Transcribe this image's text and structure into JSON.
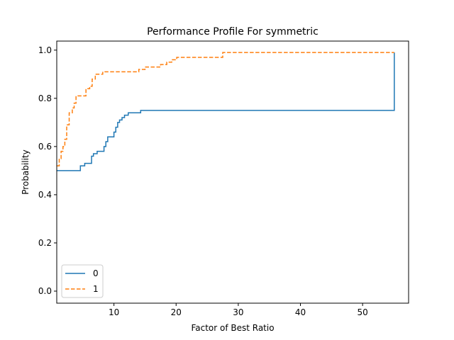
{
  "chart_data": {
    "type": "line",
    "title": "Performance Profile For symmetric",
    "xlabel": "Factor of Best Ratio",
    "ylabel": "Probability",
    "xlim": [
      0.8,
      57.4
    ],
    "ylim": [
      -0.05,
      1.0375
    ],
    "xticks": [
      10,
      20,
      30,
      40,
      50
    ],
    "yticks": [
      0.0,
      0.2,
      0.4,
      0.6,
      0.8,
      1.0
    ],
    "xtick_labels": [
      "10",
      "20",
      "30",
      "40",
      "50"
    ],
    "ytick_labels": [
      "0.0",
      "0.2",
      "0.4",
      "0.6",
      "0.8",
      "1.0"
    ],
    "step": "post",
    "grid": false,
    "legend_position": "lower-left",
    "series": [
      {
        "name": "0",
        "color": "#1f77b4",
        "dash": "solid",
        "x": [
          0.8,
          4.3,
          4.6,
          5.3,
          6.4,
          6.7,
          7.3,
          8.4,
          8.7,
          9.0,
          10.0,
          10.3,
          10.6,
          10.9,
          11.3,
          11.7,
          12.3,
          13.0,
          14.3,
          55.1,
          55.1
        ],
        "y": [
          0.5,
          0.5,
          0.52,
          0.53,
          0.56,
          0.57,
          0.58,
          0.6,
          0.62,
          0.64,
          0.66,
          0.68,
          0.7,
          0.71,
          0.72,
          0.73,
          0.74,
          0.74,
          0.75,
          0.75,
          0.99
        ]
      },
      {
        "name": "1",
        "color": "#ff7f0e",
        "dash": "dashed",
        "x": [
          0.8,
          1.2,
          1.5,
          1.8,
          2.1,
          2.4,
          2.8,
          3.3,
          3.6,
          3.9,
          4.3,
          4.8,
          5.5,
          6.1,
          6.5,
          7.0,
          8.2,
          9.5,
          14.0,
          15.0,
          17.5,
          18.5,
          19.3,
          20.1,
          27.5,
          55.1
        ],
        "y": [
          0.52,
          0.55,
          0.58,
          0.6,
          0.63,
          0.69,
          0.74,
          0.76,
          0.78,
          0.81,
          0.81,
          0.81,
          0.84,
          0.85,
          0.88,
          0.9,
          0.91,
          0.91,
          0.92,
          0.93,
          0.94,
          0.95,
          0.96,
          0.97,
          0.99,
          0.99
        ]
      }
    ]
  }
}
